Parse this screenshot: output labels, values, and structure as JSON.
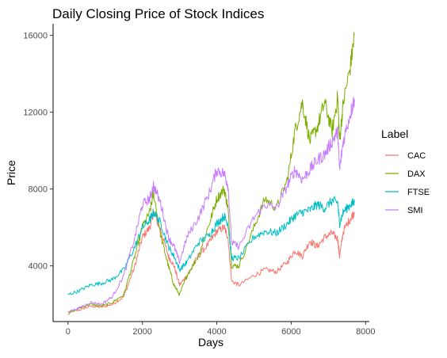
{
  "chart_data": {
    "type": "line",
    "title": "Daily Closing Price of Stock Indices",
    "xlabel": "Days",
    "ylabel": "Price",
    "xlim": [
      -400,
      8100
    ],
    "ylim": [
      1100,
      16600
    ],
    "xticks": [
      0,
      2000,
      4000,
      6000,
      8000
    ],
    "yticks": [
      4000,
      8000,
      12000,
      16000
    ],
    "xtick_labels": [
      "0",
      "2000",
      "4000",
      "6000",
      "8000"
    ],
    "ytick_labels": [
      "4000",
      "8000",
      "12000",
      "16000"
    ],
    "grid": false,
    "legend": {
      "title": "Label",
      "position": "right"
    },
    "x": [
      0,
      300,
      600,
      900,
      1200,
      1500,
      1800,
      2000,
      2200,
      2300,
      2500,
      2700,
      2850,
      3000,
      3200,
      3500,
      3800,
      4000,
      4200,
      4300,
      4400,
      4600,
      5000,
      5300,
      5600,
      5900,
      6100,
      6300,
      6500,
      6700,
      6900,
      7100,
      7250,
      7300,
      7400,
      7600,
      7700
    ],
    "series": [
      {
        "name": "CAC",
        "color": "#F8766D",
        "values": [
          1600,
          1700,
          1900,
          1850,
          2000,
          2400,
          4000,
          5500,
          6000,
          6800,
          5800,
          4500,
          4000,
          3000,
          3500,
          4500,
          5200,
          5800,
          6000,
          5500,
          3200,
          3000,
          3500,
          3800,
          3700,
          4200,
          4800,
          4500,
          5300,
          5000,
          5500,
          5700,
          5400,
          4500,
          5800,
          6500,
          6800
        ]
      },
      {
        "name": "DAX",
        "color": "#7CAE00",
        "values": [
          1500,
          1800,
          2000,
          1900,
          2100,
          2500,
          4500,
          6000,
          6800,
          7800,
          5500,
          4000,
          3000,
          2500,
          3500,
          4500,
          6200,
          7500,
          8000,
          7000,
          4000,
          4000,
          6000,
          7500,
          7000,
          8500,
          11000,
          12500,
          10500,
          11200,
          12500,
          11000,
          12800,
          10500,
          12500,
          14500,
          16000
        ]
      },
      {
        "name": "FTSE",
        "color": "#00BFC4",
        "values": [
          2500,
          2700,
          3000,
          3100,
          3300,
          3800,
          5000,
          6000,
          6400,
          6800,
          6200,
          5000,
          4500,
          3800,
          4200,
          5200,
          5600,
          6200,
          6600,
          6200,
          4400,
          4400,
          5500,
          5800,
          5700,
          6200,
          6600,
          6800,
          6900,
          7200,
          7000,
          7400,
          7300,
          6200,
          6800,
          7200,
          7300
        ]
      },
      {
        "name": "SMI",
        "color": "#C77CFF",
        "values": [
          1600,
          1800,
          2100,
          2000,
          2400,
          3500,
          5500,
          7200,
          7500,
          8200,
          7200,
          5500,
          5000,
          4200,
          5500,
          6500,
          7800,
          9000,
          8800,
          8200,
          5200,
          5000,
          6500,
          7200,
          7000,
          8200,
          9000,
          8500,
          9000,
          9500,
          9800,
          10500,
          11000,
          9000,
          10500,
          12000,
          12700
        ]
      }
    ]
  }
}
